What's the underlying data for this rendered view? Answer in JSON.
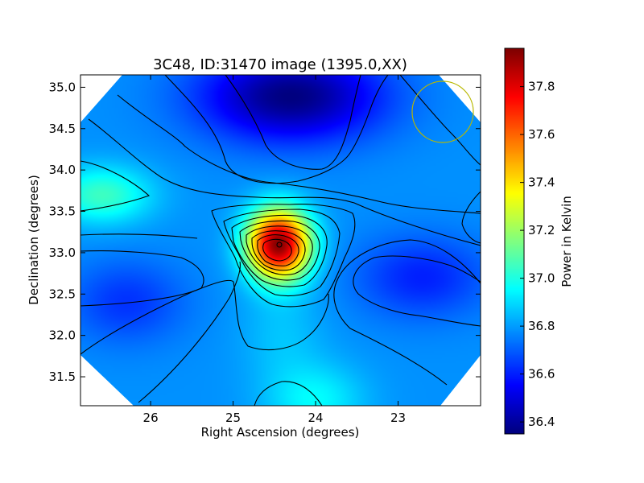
{
  "chart_data": {
    "type": "heatmap",
    "title": "3C48, ID:31470 image (1395.0,XX)",
    "xlabel": "Right Ascension (degrees)",
    "ylabel": "Declination (degrees)",
    "xlim": [
      26.85,
      22.0
    ],
    "ylim": [
      31.15,
      35.15
    ],
    "x_ticks": [
      26,
      25,
      24,
      23
    ],
    "x_tick_labels": [
      "26",
      "25",
      "24",
      "23"
    ],
    "y_ticks": [
      31.5,
      32.0,
      32.5,
      33.0,
      33.5,
      34.0,
      34.5,
      35.0
    ],
    "y_tick_labels": [
      "31.5",
      "32.0",
      "32.5",
      "33.0",
      "33.5",
      "34.0",
      "34.5",
      "35.0"
    ],
    "colormap": "jet",
    "colorbar": {
      "label": "Power in Kelvin",
      "range": [
        36.35,
        37.96
      ],
      "ticks": [
        36.4,
        36.6,
        36.8,
        37.0,
        37.2,
        37.4,
        37.6,
        37.8
      ],
      "tick_labels": [
        "36.4",
        "36.6",
        "36.8",
        "37.0",
        "37.2",
        "37.4",
        "37.6",
        "37.8"
      ]
    },
    "features": [
      {
        "kind": "peak",
        "ra": 24.45,
        "dec": 33.1,
        "value": 37.95
      },
      {
        "kind": "trough",
        "ra": 24.3,
        "dec": 34.9,
        "value": 36.35
      },
      {
        "kind": "local-max",
        "ra": 26.6,
        "dec": 33.7,
        "value": 37.05
      },
      {
        "kind": "ridge",
        "ra": 24.0,
        "dec": 31.2,
        "value": 36.95
      },
      {
        "kind": "low",
        "ra": 22.7,
        "dec": 32.7,
        "value": 36.6
      }
    ],
    "grid": false,
    "beam_marker": {
      "ra": 22.5,
      "dec": 34.7,
      "color": "#b8b800"
    }
  }
}
